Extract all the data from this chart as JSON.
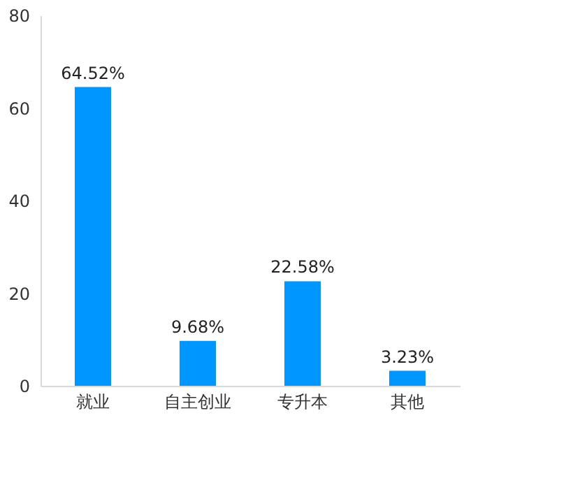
{
  "chart_data": {
    "type": "bar",
    "categories": [
      "就业",
      "自主创业",
      "专升本",
      "其他"
    ],
    "values": [
      64.52,
      9.68,
      22.58,
      3.23
    ],
    "value_labels": [
      "64.52%",
      "9.68%",
      "22.58%",
      "3.23%"
    ],
    "color": "#0096ff",
    "ylim": [
      0,
      80
    ],
    "yticks": [
      0,
      20,
      40,
      60,
      80
    ],
    "grid": false
  }
}
